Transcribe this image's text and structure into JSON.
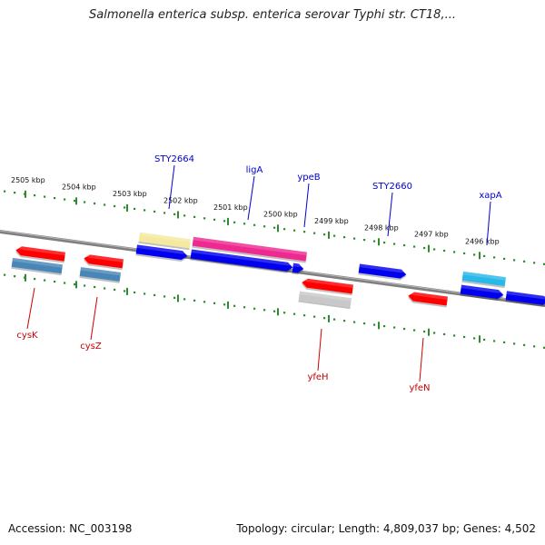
{
  "title": "Salmonella enterica subsp. enterica serovar Typhi str. CT18,...",
  "footer": {
    "accession": "Accession: NC_003198",
    "summary": "Topology: circular; Length: 4,809,037 bp; Genes: 4,502"
  },
  "colors": {
    "backbone": "#7f7f7f",
    "tick": "#2e8b2e",
    "label_forward": "#0000cc",
    "label_reverse": "#cc0000",
    "red": "#ff0000",
    "blue": "#0000ee",
    "steelblue": "#4a86b8",
    "khaki": "#f5e9a0",
    "pink": "#ee2a90",
    "gray": "#c8c8c8",
    "cyan": "#2ab8e8"
  },
  "ticks": [
    {
      "label": "2505 kbp"
    },
    {
      "label": "2504 kbp"
    },
    {
      "label": "2503 kbp"
    },
    {
      "label": "2502 kbp"
    },
    {
      "label": "2501 kbp"
    },
    {
      "label": "2500 kbp"
    },
    {
      "label": "2499 kbp"
    },
    {
      "label": "2498 kbp"
    },
    {
      "label": "2497 kbp"
    },
    {
      "label": "2496 kbp"
    }
  ],
  "gene_labels": [
    {
      "text": "STY2664",
      "strand": "forward"
    },
    {
      "text": "ligA",
      "strand": "forward"
    },
    {
      "text": "ypeB",
      "strand": "forward"
    },
    {
      "text": "STY2660",
      "strand": "forward"
    },
    {
      "text": "xapA",
      "strand": "forward"
    },
    {
      "text": "cysK",
      "strand": "reverse"
    },
    {
      "text": "cysZ",
      "strand": "reverse"
    },
    {
      "text": "yfeH",
      "strand": "reverse"
    },
    {
      "text": "yfeN",
      "strand": "reverse"
    }
  ]
}
